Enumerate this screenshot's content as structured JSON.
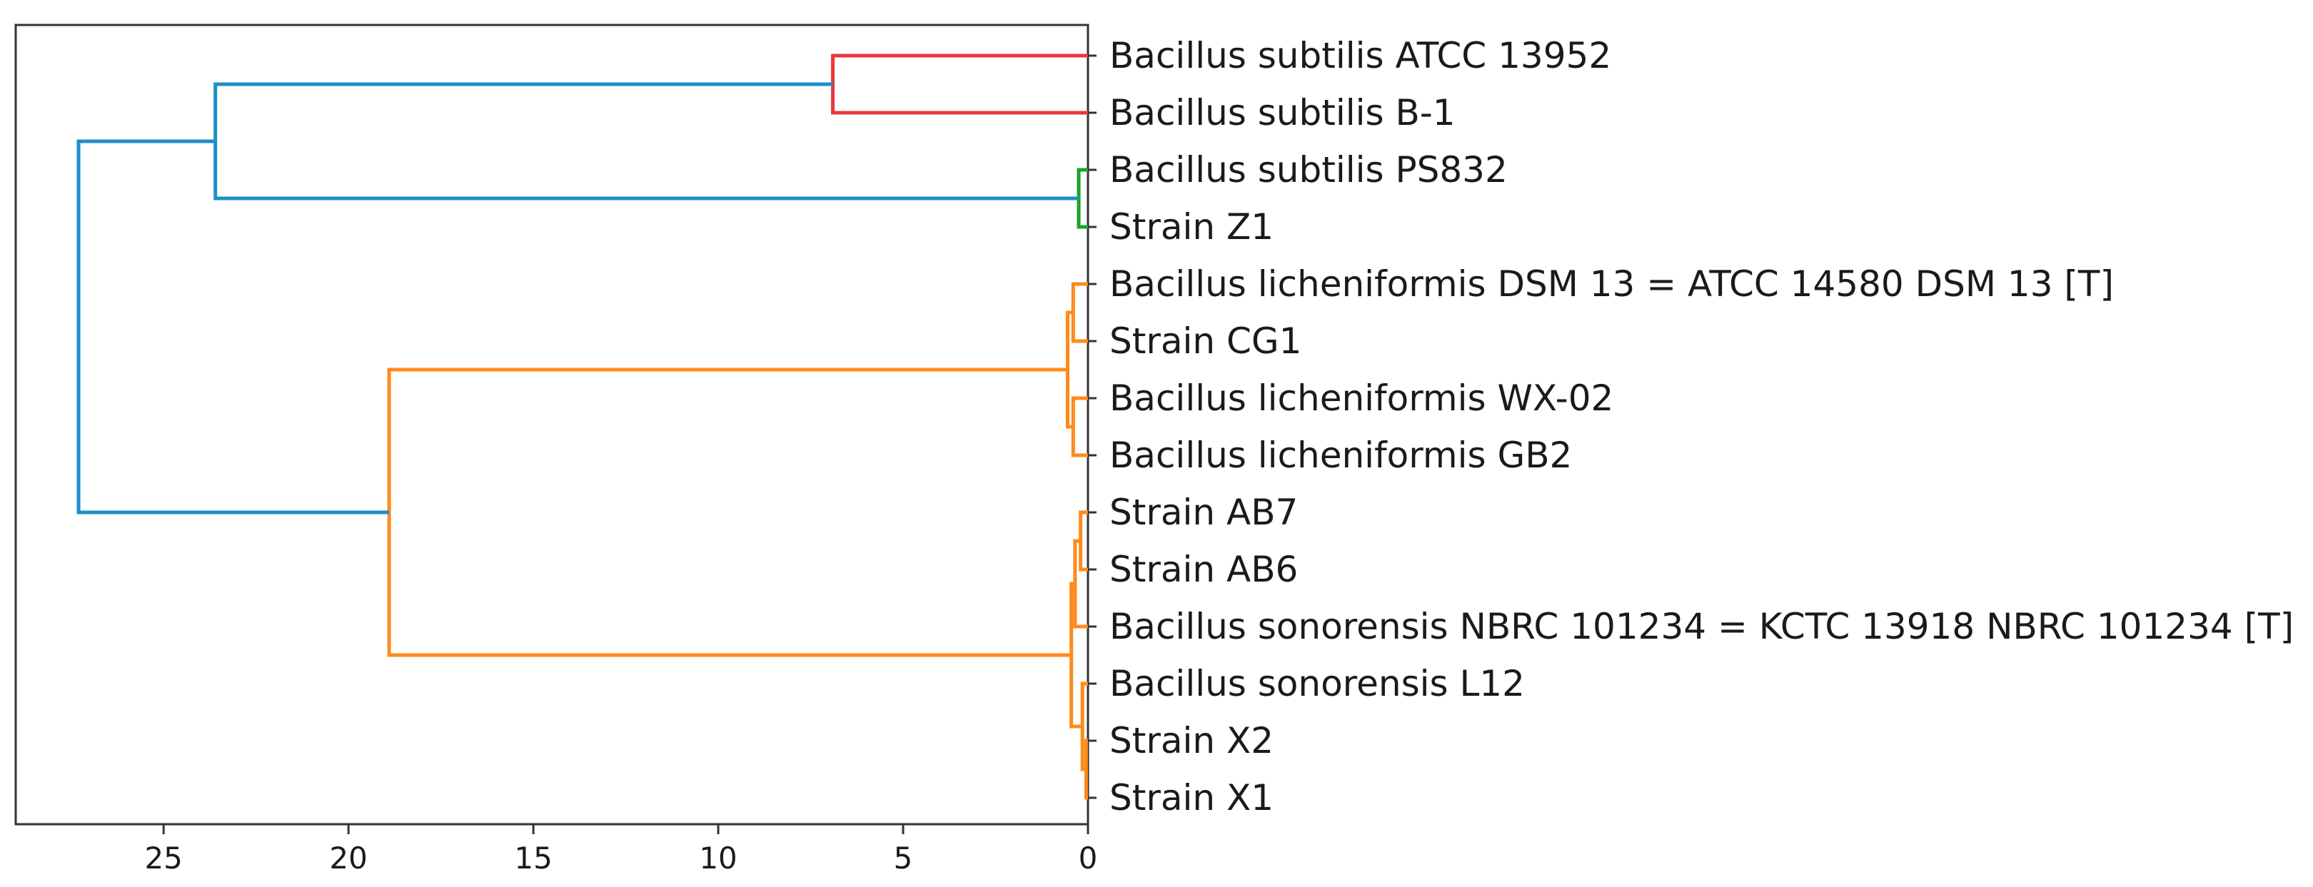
{
  "chart_data": {
    "type": "dendrogram",
    "orientation": "left",
    "title": "",
    "xlabel": "",
    "ylabel": "",
    "xlim": [
      29,
      0
    ],
    "xticks": [
      25,
      20,
      15,
      10,
      5,
      0
    ],
    "xtick_labels": [
      "25",
      "20",
      "15",
      "10",
      "5",
      "0"
    ],
    "leaves": [
      "Bacillus subtilis ATCC 13952",
      "Bacillus subtilis B-1",
      "Bacillus subtilis PS832",
      "Strain Z1",
      "Bacillus licheniformis DSM 13 = ATCC 14580 DSM 13 [T]",
      "Strain CG1",
      "Bacillus licheniformis WX-02",
      "Bacillus licheniformis GB2",
      "Strain AB7",
      "Strain AB6",
      "Bacillus sonorensis NBRC 101234 = KCTC 13918 NBRC 101234 [T]",
      "Bacillus sonorensis L12",
      "Strain X2",
      "Strain X1"
    ],
    "colors": {
      "red": "#e8383b",
      "green": "#1aa32a",
      "orange": "#ff8a1a",
      "blue": "#1f8ec6"
    },
    "merges": [
      {
        "id": "n_red",
        "children": [
          "L0",
          "L1"
        ],
        "height": 6.9,
        "color": "red"
      },
      {
        "id": "n_green",
        "children": [
          "L2",
          "L3"
        ],
        "height": 0.25,
        "color": "green"
      },
      {
        "id": "n_lic1",
        "children": [
          "L4",
          "L5"
        ],
        "height": 0.4,
        "color": "orange"
      },
      {
        "id": "n_lic2",
        "children": [
          "L6",
          "L7"
        ],
        "height": 0.4,
        "color": "orange"
      },
      {
        "id": "n_lic",
        "children": [
          "n_lic1",
          "n_lic2"
        ],
        "height": 0.55,
        "color": "orange"
      },
      {
        "id": "n_ab",
        "children": [
          "L8",
          "L9"
        ],
        "height": 0.2,
        "color": "orange"
      },
      {
        "id": "n_ab2",
        "children": [
          "n_ab",
          "L10"
        ],
        "height": 0.35,
        "color": "orange"
      },
      {
        "id": "n_x",
        "children": [
          "L12",
          "L13"
        ],
        "height": 0.05,
        "color": "orange"
      },
      {
        "id": "n_x2",
        "children": [
          "L11",
          "n_x"
        ],
        "height": 0.15,
        "color": "orange"
      },
      {
        "id": "n_son",
        "children": [
          "n_ab2",
          "n_x2"
        ],
        "height": 0.45,
        "color": "orange"
      },
      {
        "id": "n_orange",
        "children": [
          "n_lic",
          "n_son"
        ],
        "height": 18.9,
        "color": "blue_inner_orange"
      },
      {
        "id": "n_sub",
        "children": [
          "n_red",
          "n_green"
        ],
        "height": 23.6,
        "color": "blue"
      },
      {
        "id": "n_root",
        "children": [
          "n_sub",
          "n_orange"
        ],
        "height": 27.3,
        "color": "blue"
      }
    ]
  }
}
